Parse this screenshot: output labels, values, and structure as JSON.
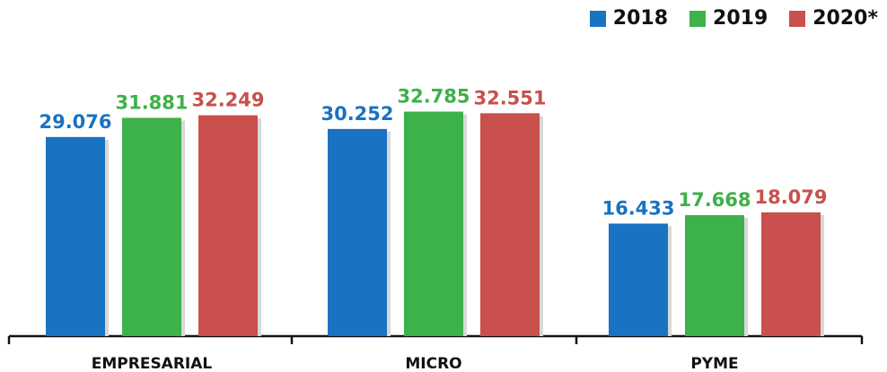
{
  "chart_data": {
    "type": "bar",
    "categories": [
      "EMPRESARIAL",
      "MICRO",
      "PYME"
    ],
    "series": [
      {
        "name": "2018",
        "color": "#1a72c2",
        "values": [
          29.076,
          30.252,
          16.433
        ],
        "labels": [
          "29.076",
          "30.252",
          "16.433"
        ]
      },
      {
        "name": "2019",
        "color": "#3db14a",
        "values": [
          31.881,
          32.785,
          17.668
        ],
        "labels": [
          "31.881",
          "32.785",
          "17.668"
        ]
      },
      {
        "name": "2020*",
        "color": "#c9504c",
        "values": [
          32.249,
          32.551,
          18.079
        ],
        "labels": [
          "32.249",
          "32.551",
          "18.079"
        ]
      }
    ],
    "ylim": [
      0,
      34.5
    ],
    "legend_position": "top-right",
    "grid": false
  }
}
